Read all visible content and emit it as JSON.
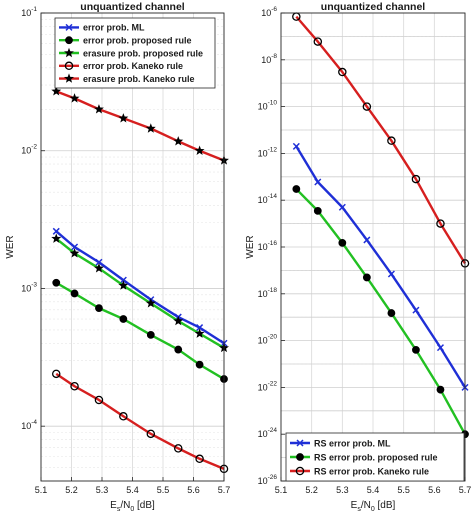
{
  "chart_data": [
    {
      "type": "line",
      "title": "unquantized channel",
      "xlabel": "E_s/N_0 [dB]",
      "ylabel": "WER",
      "yscale": "log",
      "xlim": [
        5.1,
        5.7
      ],
      "ylim": [
        4e-05,
        0.1
      ],
      "grid": true,
      "legend_position": "top-right",
      "x_ticks": [
        "5.1",
        "5.2",
        "5.3",
        "5.4",
        "5.5",
        "5.6",
        "5.7"
      ],
      "y_ticks": [
        {
          "base": "10",
          "exp": "-1"
        },
        {
          "base": "10",
          "exp": "-2"
        },
        {
          "base": "10",
          "exp": "-3"
        },
        {
          "base": "10",
          "exp": "-4"
        }
      ],
      "x": [
        5.15,
        5.21,
        5.29,
        5.37,
        5.46,
        5.55,
        5.62,
        5.7
      ],
      "series": [
        {
          "name": "error prob. ML",
          "color": "#1f2fd6",
          "marker": "x",
          "values": [
            0.0026,
            0.002,
            0.00155,
            0.00115,
            0.00083,
            0.00062,
            0.00052,
            0.0004
          ]
        },
        {
          "name": "error prob. proposed rule",
          "color": "#22c022",
          "marker": "dot",
          "values": [
            0.0011,
            0.00092,
            0.00072,
            0.0006,
            0.00046,
            0.00036,
            0.00028,
            0.00022
          ]
        },
        {
          "name": "erasure prob. proposed rule",
          "color": "#22c022",
          "marker": "star",
          "values": [
            0.0023,
            0.0018,
            0.0014,
            0.00105,
            0.00078,
            0.00058,
            0.00047,
            0.00037
          ]
        },
        {
          "name": "error prob. Kaneko rule",
          "color": "#d61f1f",
          "marker": "circle",
          "values": [
            0.00024,
            0.000195,
            0.000155,
            0.000118,
            8.8e-05,
            6.9e-05,
            5.8e-05,
            4.9e-05
          ]
        },
        {
          "name": "erasure prob. Kaneko rule",
          "color": "#d61f1f",
          "marker": "star",
          "values": [
            0.027,
            0.024,
            0.02,
            0.0172,
            0.0145,
            0.0117,
            0.01,
            0.0085
          ]
        }
      ]
    },
    {
      "type": "line",
      "title": "unquantized channel",
      "xlabel": "E_s/N_0 [dB]",
      "ylabel": "WER",
      "yscale": "log",
      "xlim": [
        5.1,
        5.7
      ],
      "ylim": [
        1e-26,
        1e-06
      ],
      "grid": true,
      "legend_position": "bottom-right",
      "x_ticks": [
        "5.1",
        "5.2",
        "5.3",
        "5.4",
        "5.5",
        "5.6",
        "5.7"
      ],
      "y_ticks": [
        {
          "base": "10",
          "exp": "-6"
        },
        {
          "base": "10",
          "exp": "-8"
        },
        {
          "base": "10",
          "exp": "-10"
        },
        {
          "base": "10",
          "exp": "-12"
        },
        {
          "base": "10",
          "exp": "-14"
        },
        {
          "base": "10",
          "exp": "-16"
        },
        {
          "base": "10",
          "exp": "-18"
        },
        {
          "base": "10",
          "exp": "-20"
        },
        {
          "base": "10",
          "exp": "-22"
        },
        {
          "base": "10",
          "exp": "-24"
        },
        {
          "base": "10",
          "exp": "-26"
        }
      ],
      "x": [
        5.15,
        5.22,
        5.3,
        5.38,
        5.46,
        5.54,
        5.62,
        5.7
      ],
      "series": [
        {
          "name": "RS error prob. ML",
          "color": "#1f2fd6",
          "marker": "x",
          "values": [
            2e-12,
            6e-14,
            5e-15,
            2e-16,
            7e-18,
            2e-19,
            5e-21,
            1e-22
          ]
        },
        {
          "name": "RS error prob. proposed rule",
          "color": "#22c022",
          "marker": "dot",
          "values": [
            3e-14,
            3.5e-15,
            1.5e-16,
            5e-18,
            1.5e-19,
            4e-21,
            8e-23,
            1e-24
          ]
        },
        {
          "name": "RS error prob. Kaneko rule",
          "color": "#d61f1f",
          "marker": "circle",
          "values": [
            7e-07,
            6e-08,
            3e-09,
            1e-10,
            3.5e-12,
            8e-14,
            1e-15,
            2e-17
          ]
        }
      ]
    }
  ]
}
